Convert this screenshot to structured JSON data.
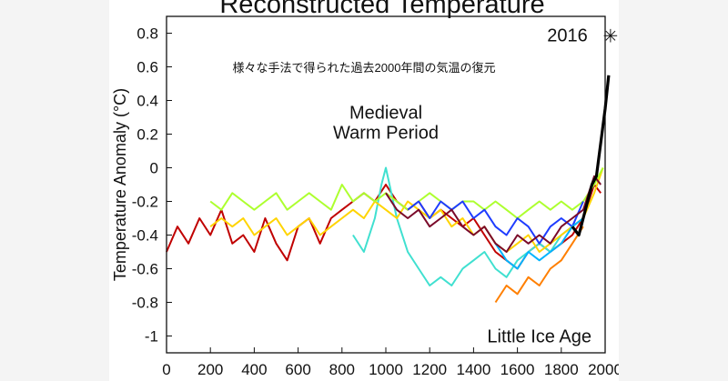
{
  "chart_data": {
    "type": "line",
    "title": "Reconstructed Temperature",
    "subtitle": "様々な手法で得られた過去2000年間の気温の復元",
    "xlabel": "",
    "ylabel": "Temperature Anomaly (°C)",
    "xlim": [
      0,
      2000
    ],
    "ylim": [
      -1.1,
      0.9
    ],
    "x_ticks": [
      0,
      200,
      400,
      600,
      800,
      1000,
      1200,
      1400,
      1600,
      1800,
      2000
    ],
    "y_ticks": [
      0.8,
      0.6,
      0.4,
      0.2,
      0,
      -0.2,
      -0.4,
      -0.6,
      -0.8,
      -1
    ],
    "grid": false,
    "legend": "none",
    "annotations": [
      {
        "text": "Medieval",
        "x": 1000,
        "y": 0.33
      },
      {
        "text": "Warm Period",
        "x": 1000,
        "y": 0.21
      },
      {
        "text": "Little Ice Age",
        "x": 1700,
        "y": -1.0
      },
      {
        "text": "2016",
        "x": 1920,
        "y": 0.79
      }
    ],
    "marker_2016": {
      "symbol": "✳",
      "x": 2016,
      "y": 0.79
    },
    "series": [
      {
        "color": "#c00000",
        "x": [
          0,
          50,
          100,
          150,
          200,
          250,
          300,
          350,
          400,
          450,
          500,
          550,
          600,
          650,
          700,
          750,
          800,
          850,
          900,
          950,
          1000,
          1050,
          1100,
          1150,
          1200,
          1250,
          1300,
          1350,
          1400,
          1450,
          1500,
          1550,
          1600,
          1650,
          1700,
          1750,
          1800,
          1850,
          1900,
          1950,
          1980
        ],
        "y": [
          -0.5,
          -0.35,
          -0.45,
          -0.3,
          -0.4,
          -0.25,
          -0.45,
          -0.4,
          -0.5,
          -0.3,
          -0.45,
          -0.55,
          -0.35,
          -0.3,
          -0.45,
          -0.3,
          -0.25,
          -0.2,
          -0.15,
          -0.2,
          -0.1,
          -0.2,
          -0.25,
          -0.2,
          -0.3,
          -0.25,
          -0.3,
          -0.35,
          -0.3,
          -0.4,
          -0.5,
          -0.55,
          -0.6,
          -0.5,
          -0.45,
          -0.5,
          -0.45,
          -0.4,
          -0.3,
          -0.1,
          -0.15
        ]
      },
      {
        "color": "#40e0d0",
        "x": [
          850,
          900,
          950,
          980,
          1000,
          1050,
          1100,
          1150,
          1200,
          1250,
          1300,
          1350,
          1400,
          1450,
          1500,
          1550,
          1600,
          1650,
          1700,
          1750,
          1800,
          1850,
          1900
        ],
        "y": [
          -0.4,
          -0.5,
          -0.3,
          -0.1,
          0.0,
          -0.3,
          -0.5,
          -0.6,
          -0.7,
          -0.65,
          -0.7,
          -0.6,
          -0.55,
          -0.5,
          -0.6,
          -0.65,
          -0.55,
          -0.5,
          -0.45,
          -0.5,
          -0.4,
          -0.35,
          -0.3
        ]
      },
      {
        "color": "#ffd400",
        "x": [
          200,
          250,
          300,
          350,
          400,
          450,
          500,
          550,
          600,
          650,
          700,
          750,
          800,
          850,
          900,
          950,
          1000,
          1050,
          1100,
          1150,
          1200,
          1250,
          1300,
          1350,
          1400,
          1450,
          1500,
          1550,
          1600,
          1650,
          1700,
          1750,
          1800,
          1850,
          1900,
          1950,
          1990
        ],
        "y": [
          -0.35,
          -0.3,
          -0.35,
          -0.3,
          -0.4,
          -0.35,
          -0.3,
          -0.4,
          -0.35,
          -0.3,
          -0.4,
          -0.35,
          -0.3,
          -0.25,
          -0.3,
          -0.2,
          -0.25,
          -0.3,
          -0.2,
          -0.25,
          -0.3,
          -0.25,
          -0.35,
          -0.3,
          -0.4,
          -0.35,
          -0.45,
          -0.5,
          -0.45,
          -0.4,
          -0.5,
          -0.45,
          -0.4,
          -0.35,
          -0.3,
          -0.15,
          0.0
        ]
      },
      {
        "color": "#adff2f",
        "x": [
          200,
          250,
          300,
          350,
          400,
          450,
          500,
          550,
          600,
          650,
          700,
          750,
          800,
          850,
          900,
          950,
          1000,
          1050,
          1100,
          1150,
          1200,
          1250,
          1300,
          1350,
          1400,
          1450,
          1500,
          1550,
          1600,
          1650,
          1700,
          1750,
          1800,
          1850,
          1900,
          1950,
          1990
        ],
        "y": [
          -0.2,
          -0.25,
          -0.15,
          -0.2,
          -0.25,
          -0.2,
          -0.15,
          -0.25,
          -0.2,
          -0.15,
          -0.2,
          -0.25,
          -0.1,
          -0.2,
          -0.15,
          -0.2,
          -0.15,
          -0.2,
          -0.25,
          -0.2,
          -0.15,
          -0.2,
          -0.25,
          -0.2,
          -0.2,
          -0.25,
          -0.2,
          -0.25,
          -0.3,
          -0.25,
          -0.2,
          -0.25,
          -0.2,
          -0.25,
          -0.2,
          -0.1,
          0.0
        ]
      },
      {
        "color": "#1e3cff",
        "x": [
          1100,
          1150,
          1200,
          1250,
          1300,
          1350,
          1400,
          1450,
          1500,
          1550,
          1600,
          1650,
          1700,
          1750,
          1800,
          1850,
          1900
        ],
        "y": [
          -0.25,
          -0.2,
          -0.3,
          -0.2,
          -0.25,
          -0.2,
          -0.3,
          -0.25,
          -0.35,
          -0.4,
          -0.3,
          -0.35,
          -0.45,
          -0.35,
          -0.3,
          -0.35,
          -0.2
        ]
      },
      {
        "color": "#00b4ff",
        "x": [
          1500,
          1550,
          1600,
          1650,
          1700,
          1750,
          1800,
          1850,
          1900
        ],
        "y": [
          -0.45,
          -0.55,
          -0.6,
          -0.5,
          -0.55,
          -0.5,
          -0.45,
          -0.35,
          -0.3
        ]
      },
      {
        "color": "#ff7f00",
        "x": [
          1500,
          1550,
          1600,
          1650,
          1700,
          1750,
          1800,
          1850,
          1900
        ],
        "y": [
          -0.8,
          -0.7,
          -0.75,
          -0.65,
          -0.7,
          -0.6,
          -0.55,
          -0.45,
          -0.35
        ]
      },
      {
        "color": "#7a0a2a",
        "x": [
          1000,
          1050,
          1100,
          1150,
          1200,
          1250,
          1300,
          1350,
          1400,
          1450,
          1500,
          1550,
          1600,
          1650,
          1700,
          1750,
          1800,
          1850,
          1900,
          1950,
          1980
        ],
        "y": [
          -0.15,
          -0.25,
          -0.3,
          -0.25,
          -0.35,
          -0.3,
          -0.25,
          -0.35,
          -0.4,
          -0.35,
          -0.45,
          -0.5,
          -0.4,
          -0.45,
          -0.4,
          -0.45,
          -0.35,
          -0.3,
          -0.25,
          -0.05,
          -0.1
        ]
      },
      {
        "color": "#000000",
        "x": [
          1850,
          1880,
          1900,
          1920,
          1940,
          1960,
          1980,
          2000,
          2016
        ],
        "y": [
          -0.35,
          -0.4,
          -0.3,
          -0.2,
          -0.1,
          -0.05,
          0.15,
          0.35,
          0.55
        ]
      }
    ]
  }
}
